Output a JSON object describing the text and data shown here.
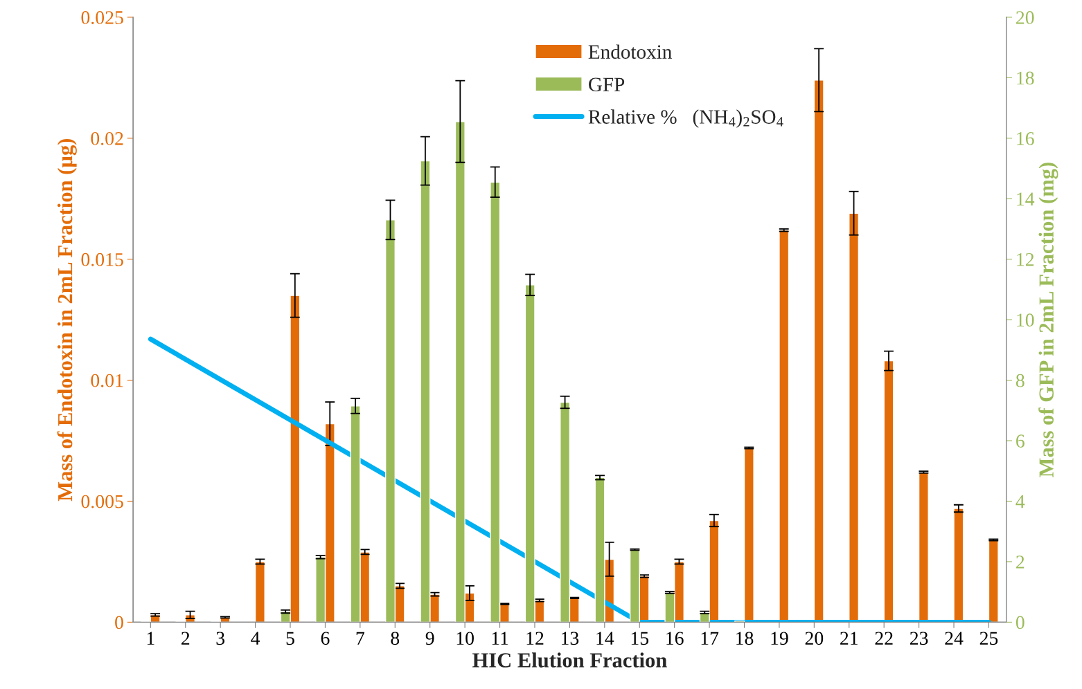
{
  "chart_data": {
    "type": "bar",
    "xlabel": "HIC Elution Fraction",
    "ylabel": "Mass of Endotoxin in 2mL Fraction (µg)",
    "y2label": "Mass of GFP in 2mL Fraction (mg)",
    "categories": [
      "1",
      "2",
      "3",
      "4",
      "5",
      "6",
      "7",
      "8",
      "9",
      "10",
      "11",
      "12",
      "13",
      "14",
      "15",
      "16",
      "17",
      "18",
      "19",
      "20",
      "21",
      "22",
      "23",
      "24",
      "25"
    ],
    "series": [
      {
        "name": "Endotoxin",
        "axis": "y",
        "color": "#e36c09",
        "values": [
          0.0003,
          0.0003,
          0.0002,
          0.0025,
          0.0135,
          0.0082,
          0.0029,
          0.0015,
          0.00115,
          0.0012,
          0.00075,
          0.0009,
          0.001,
          0.0026,
          0.0019,
          0.0025,
          0.0042,
          0.0072,
          0.0162,
          0.0224,
          0.0169,
          0.0108,
          0.0062,
          0.0047,
          0.0034
        ],
        "errors": [
          5e-05,
          0.00015,
          3e-05,
          0.0001,
          0.0009,
          0.0009,
          0.0001,
          0.0001,
          7e-05,
          0.0003,
          2e-05,
          5e-05,
          2e-05,
          0.0007,
          5e-05,
          0.0001,
          0.00025,
          3e-05,
          5e-05,
          0.0013,
          0.0009,
          0.0004,
          4e-05,
          0.00015,
          3e-05
        ]
      },
      {
        "name": "GFP",
        "axis": "y2",
        "color": "#9bbb59",
        "values": [
          0.02,
          0.02,
          0.02,
          null,
          0.35,
          2.15,
          7.15,
          13.3,
          15.25,
          16.55,
          14.55,
          11.15,
          7.27,
          4.78,
          2.4,
          0.98,
          0.32,
          0.04,
          null,
          null,
          null,
          null,
          null,
          null,
          null
        ],
        "errors": [
          null,
          null,
          null,
          null,
          0.05,
          0.05,
          0.25,
          0.65,
          0.8,
          1.35,
          0.5,
          0.35,
          0.2,
          0.07,
          0.02,
          0.03,
          0.04,
          null,
          null,
          null,
          null,
          null,
          null,
          null,
          null
        ]
      },
      {
        "name": "Relative %   (NH$_{4}$)$_{2}$SO$_{4}$",
        "type": "line",
        "axis": "y",
        "color": "#00b0f0",
        "x": [
          "1",
          "15",
          "25"
        ],
        "values": [
          0.0117,
          0,
          0
        ]
      }
    ],
    "ylim": [
      0,
      0.025
    ],
    "yticks": [
      0,
      0.005,
      0.01,
      0.015,
      0.02,
      0.025
    ],
    "y2lim": [
      0,
      20
    ],
    "y2ticks": [
      0,
      2,
      4,
      6,
      8,
      10,
      12,
      14,
      16,
      18,
      20
    ],
    "grid": false,
    "legend": "top",
    "marker": "none",
    "line_style": "solid"
  }
}
